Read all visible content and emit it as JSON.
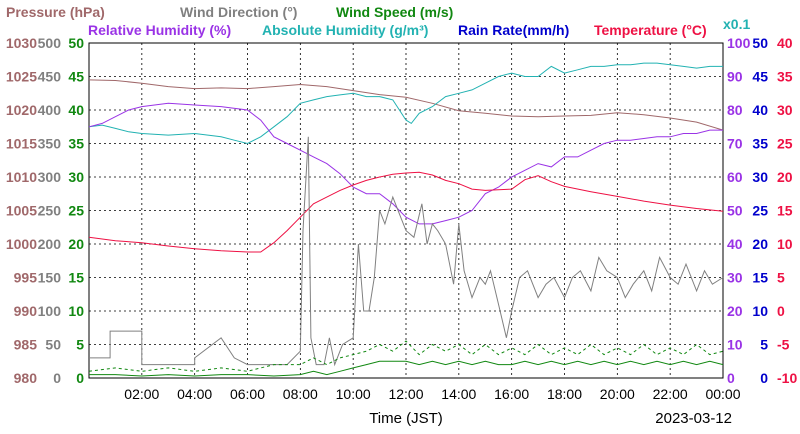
{
  "chart_data": {
    "type": "line",
    "date": "2023-03-12",
    "xlabel": "Time (JST)",
    "x_range": [
      "00:00",
      "24:00"
    ],
    "x_ticks": [
      "02:00",
      "04:00",
      "06:00",
      "08:00",
      "10:00",
      "12:00",
      "14:00",
      "16:00",
      "18:00",
      "20:00",
      "22:00",
      "00:00"
    ],
    "grid": true,
    "legend_row1": [
      {
        "key": "pressure",
        "label": "Pressure (hPa)",
        "color": "#a0686a"
      },
      {
        "key": "wind_dir",
        "label": "Wind Direction (°)",
        "color": "#808080"
      },
      {
        "key": "wind_speed",
        "label": "Wind Speed (m/s)",
        "color": "#118811"
      }
    ],
    "legend_row2": [
      {
        "key": "rh",
        "label": "Relative Humidity (%)",
        "color": "#9a33e6"
      },
      {
        "key": "ah",
        "label": "Absolute Humidity (g/m³)",
        "color": "#22b2b2"
      },
      {
        "key": "rain",
        "label": "Rain Rate(mm/h)",
        "color": "#0000cc"
      },
      {
        "key": "temp",
        "label": "Temperature (°C)",
        "color": "#ee1144"
      }
    ],
    "ah_scale_label": "x0.1",
    "axes": {
      "pressure": {
        "ylim": [
          980,
          1030
        ],
        "ticks": [
          "980",
          "985",
          "990",
          "995",
          "1000",
          "1005",
          "1010",
          "1015",
          "1020",
          "1025",
          "1030"
        ],
        "color": "#a0686a"
      },
      "wind_dir": {
        "ylim": [
          0,
          500
        ],
        "ticks": [
          "0",
          "50",
          "100",
          "150",
          "200",
          "250",
          "300",
          "350",
          "400",
          "450",
          "500"
        ],
        "color": "#808080"
      },
      "wind_speed": {
        "ylim": [
          0,
          50
        ],
        "ticks": [
          "0",
          "5",
          "10",
          "15",
          "20",
          "25",
          "30",
          "35",
          "40",
          "45",
          "50"
        ],
        "color": "#118811"
      },
      "rh": {
        "ylim": [
          0,
          100
        ],
        "ticks": [
          "0",
          "10",
          "20",
          "30",
          "40",
          "50",
          "60",
          "70",
          "80",
          "90",
          "100"
        ],
        "color": "#9a33e6"
      },
      "rain": {
        "ylim": [
          0,
          50
        ],
        "ticks": [
          "0",
          "5",
          "10",
          "15",
          "20",
          "25",
          "30",
          "35",
          "40",
          "45",
          "50"
        ],
        "color": "#0000cc"
      },
      "temp": {
        "ylim": [
          -10,
          40
        ],
        "ticks": [
          "-10",
          "-5",
          "0",
          "5",
          "10",
          "15",
          "20",
          "25",
          "30",
          "35",
          "40"
        ],
        "color": "#ee1144"
      }
    },
    "series": [
      {
        "key": "pressure",
        "color": "#a0686a",
        "axis": "pressure",
        "x": [
          0,
          1,
          2,
          3,
          4,
          5,
          6,
          7,
          8,
          9,
          10,
          11,
          12,
          13,
          14,
          15,
          16,
          17,
          18,
          19,
          20,
          21,
          22,
          23,
          24
        ],
        "y": [
          1024.5,
          1024.4,
          1024.0,
          1023.5,
          1023.2,
          1023.3,
          1023.2,
          1023.5,
          1023.8,
          1023.5,
          1022.9,
          1022.3,
          1021.9,
          1021.0,
          1019.9,
          1019.5,
          1019.1,
          1019.0,
          1019.1,
          1019.2,
          1019.6,
          1019.3,
          1018.8,
          1018.2,
          1017.0
        ]
      },
      {
        "key": "ah",
        "color": "#22b2b2",
        "axis": "rh",
        "note": "absolute humidity x0.1 plotted on humidity axis",
        "x": [
          0,
          0.5,
          1,
          1.5,
          2,
          3,
          4,
          5,
          5.5,
          6,
          6.5,
          7,
          7.5,
          8,
          8.5,
          9,
          9.5,
          10,
          10.5,
          11,
          11.5,
          12,
          12.2,
          12.5,
          13,
          13.5,
          14,
          14.5,
          15,
          15.5,
          16,
          16.5,
          17,
          17.5,
          18,
          18.5,
          19,
          19.5,
          20,
          20.5,
          21,
          21.5,
          22,
          22.5,
          23,
          23.5,
          24
        ],
        "y": [
          75,
          75.5,
          74.5,
          73.5,
          73,
          72.5,
          73,
          72,
          71,
          70,
          72,
          75,
          78,
          82,
          83,
          84,
          84.5,
          85,
          84,
          84,
          83,
          77,
          76,
          79,
          81,
          84,
          85,
          86,
          88,
          90,
          91,
          90,
          90,
          93,
          91,
          92,
          93,
          93,
          93.5,
          93.5,
          94,
          94,
          93.5,
          93,
          92.5,
          93,
          93
        ]
      },
      {
        "key": "rh",
        "color": "#9a33e6",
        "axis": "rh",
        "x": [
          0,
          0.5,
          1,
          1.5,
          2,
          3,
          4,
          5,
          6,
          6.5,
          7,
          7.5,
          8,
          8.5,
          9,
          9.5,
          10,
          10.5,
          11,
          11.5,
          12,
          12.5,
          13,
          13.5,
          14,
          14.5,
          15,
          15.5,
          16,
          16.5,
          17,
          17.5,
          18,
          18.5,
          19,
          19.5,
          20,
          20.5,
          21,
          21.5,
          22,
          22.5,
          23,
          23.5,
          24
        ],
        "y": [
          75,
          76,
          78,
          80,
          81,
          82,
          81.5,
          81,
          80,
          77,
          72,
          70,
          68,
          66,
          64,
          61,
          57,
          55,
          55,
          52,
          48,
          46,
          46,
          47,
          48,
          50,
          55,
          57,
          60,
          62,
          64,
          63,
          66,
          66,
          68,
          70,
          71,
          71,
          71.5,
          72,
          72,
          73,
          73,
          74,
          74
        ]
      },
      {
        "key": "temp",
        "color": "#ee1144",
        "axis": "temp",
        "x": [
          0,
          1,
          2,
          3,
          4,
          5,
          6,
          6.5,
          7,
          7.5,
          8,
          8.5,
          9,
          9.5,
          10,
          10.5,
          11,
          11.5,
          12,
          12.5,
          13,
          13.5,
          14,
          14.5,
          15,
          15.5,
          16,
          16.5,
          17,
          17.5,
          18,
          19,
          20,
          21,
          22,
          23,
          24
        ],
        "y": [
          11,
          10.5,
          10.2,
          9.7,
          9.3,
          9,
          8.8,
          8.8,
          10.2,
          12,
          14,
          16,
          17,
          18,
          18.8,
          19.5,
          20,
          20.4,
          20.6,
          20.7,
          20.3,
          19.5,
          19,
          18.2,
          18,
          18.1,
          18.2,
          19.6,
          20.2,
          19.3,
          18.6,
          17.8,
          17.1,
          16.4,
          15.8,
          15.3,
          14.9
        ]
      },
      {
        "key": "wind_dir",
        "color": "#808080",
        "axis": "wind_dir",
        "x": [
          0,
          0.8,
          0.8,
          2,
          2,
          4,
          4,
          5,
          5.5,
          6,
          6.5,
          7,
          7.5,
          8,
          8.1,
          8.3,
          8.4,
          8.6,
          8.9,
          9.1,
          9.3,
          9.6,
          10,
          10.2,
          10.4,
          10.6,
          10.8,
          11,
          11.2,
          11.5,
          11.8,
          12,
          12.3,
          12.6,
          12.8,
          13,
          13.2,
          13.5,
          13.8,
          14,
          14.2,
          14.5,
          14.8,
          15,
          15.2,
          15.5,
          15.8,
          16,
          16.3,
          16.6,
          17,
          17.3,
          17.6,
          18,
          18.3,
          18.6,
          19,
          19.3,
          19.6,
          20,
          20.3,
          20.6,
          21,
          21.3,
          21.6,
          22,
          22.3,
          22.6,
          23,
          23.3,
          23.6,
          24
        ],
        "y": [
          30,
          30,
          70,
          70,
          20,
          20,
          30,
          60,
          30,
          20,
          20,
          20,
          20,
          40,
          220,
          360,
          60,
          20,
          20,
          60,
          20,
          50,
          60,
          200,
          100,
          100,
          150,
          250,
          230,
          270,
          240,
          220,
          210,
          260,
          200,
          230,
          220,
          200,
          140,
          230,
          160,
          120,
          150,
          140,
          160,
          110,
          60,
          100,
          150,
          160,
          120,
          140,
          150,
          120,
          150,
          160,
          130,
          180,
          160,
          150,
          120,
          140,
          160,
          130,
          180,
          150,
          140,
          170,
          130,
          160,
          140,
          150
        ]
      },
      {
        "key": "wind_speed",
        "color": "#118811",
        "axis": "wind_speed",
        "x": [
          0,
          1,
          2,
          3,
          4,
          5,
          6,
          7,
          8,
          8.5,
          9,
          9.5,
          10,
          10.5,
          11,
          11.5,
          12,
          12.5,
          13,
          13.5,
          14,
          14.5,
          15,
          15.5,
          16,
          16.5,
          17,
          17.5,
          18,
          18.5,
          19,
          19.5,
          20,
          20.5,
          21,
          21.5,
          22,
          22.5,
          23,
          23.5,
          24
        ],
        "y": [
          0.5,
          0.5,
          0.3,
          0.5,
          0.3,
          0.5,
          0.5,
          0.3,
          0.5,
          1,
          0.5,
          1,
          1.5,
          2,
          2.5,
          2.5,
          2.5,
          2,
          2.5,
          2,
          2.5,
          2,
          2.5,
          2,
          2,
          2.5,
          2,
          2.5,
          2,
          2.5,
          2,
          2.5,
          2,
          2.5,
          2,
          2.5,
          2,
          2.5,
          2,
          2.5,
          2
        ]
      },
      {
        "key": "wind_gust",
        "color": "#118811",
        "axis": "wind_speed",
        "dashed": true,
        "x": [
          0,
          1,
          2,
          3,
          4,
          5,
          6,
          7,
          8,
          8.5,
          9,
          9.5,
          10,
          10.5,
          11,
          11.5,
          12,
          12.5,
          13,
          13.5,
          14,
          14.5,
          15,
          15.5,
          16,
          16.5,
          17,
          17.5,
          18,
          18.5,
          19,
          19.5,
          20,
          20.5,
          21,
          21.5,
          22,
          22.5,
          23,
          23.5,
          24
        ],
        "y": [
          1,
          1.5,
          1,
          1.5,
          1,
          1.5,
          1,
          2,
          2,
          3,
          2,
          3,
          3.5,
          4,
          5,
          4,
          5.5,
          3.5,
          5,
          4,
          5,
          3.5,
          5,
          3.5,
          4.5,
          3.5,
          5,
          3.5,
          4.5,
          3.5,
          5,
          3.5,
          4.5,
          3.5,
          5,
          3.5,
          4.5,
          3.5,
          5,
          3.5,
          4
        ]
      }
    ]
  }
}
